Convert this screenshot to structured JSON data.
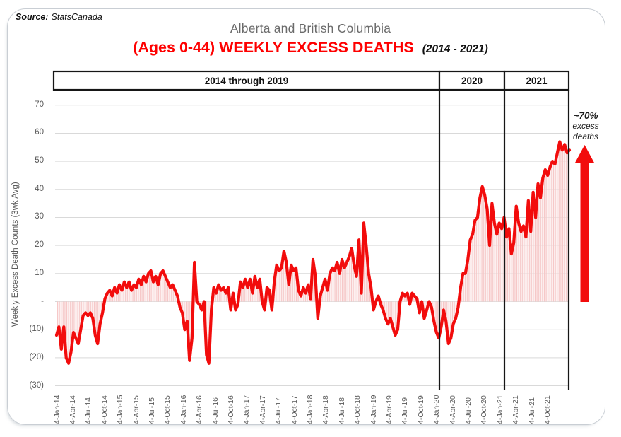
{
  "source": {
    "label": "Source:",
    "value": "StatsCanada"
  },
  "title": {
    "line1": "Alberta and British Columbia",
    "line2_red": "(Ages 0-44) WEEKLY EXCESS DEATHS",
    "line2_suffix": "(2014 - 2021)"
  },
  "period_bands": [
    {
      "label": "2014 through 2019"
    },
    {
      "label": "2020"
    },
    {
      "label": "2021"
    }
  ],
  "annotation": {
    "headline": "~70%",
    "line2": "excess",
    "line3": "deaths"
  },
  "colors": {
    "line_red": "#f20c0c",
    "title_red": "#fe0000",
    "fill_pink_stripe": "#f5c6c6",
    "fill_pink_bg": "rgba(252,233,233,0.6)",
    "gridline": "#d9d9d9",
    "axis_text": "#595959",
    "band_border": "#161616"
  },
  "chart_data": {
    "type": "line",
    "title": "Alberta and British Columbia (Ages 0-44) Weekly Excess Deaths (2014 - 2021)",
    "ylabel": "Weekly Excess Death Counts (3wk Avg)",
    "ylim": [
      -30,
      70
    ],
    "grid": true,
    "legend": "none",
    "period_dividers": [
      "start of 2020",
      "start of 2021"
    ],
    "y_ticks": [
      {
        "value": 70,
        "label": "70"
      },
      {
        "value": 60,
        "label": "60"
      },
      {
        "value": 50,
        "label": "50"
      },
      {
        "value": 40,
        "label": "40"
      },
      {
        "value": 30,
        "label": "30"
      },
      {
        "value": 20,
        "label": "20"
      },
      {
        "value": 10,
        "label": "10"
      },
      {
        "value": 0,
        "label": "-"
      },
      {
        "value": -10,
        "label": "(10)"
      },
      {
        "value": -20,
        "label": "(20)"
      },
      {
        "value": -30,
        "label": "(30)"
      }
    ],
    "x_ticks": [
      "4-Jan-14",
      "4-Apr-14",
      "4-Jul-14",
      "4-Oct-14",
      "4-Jan-15",
      "4-Apr-15",
      "4-Jul-15",
      "4-Oct-15",
      "4-Jan-16",
      "4-Apr-16",
      "4-Jul-16",
      "4-Oct-16",
      "4-Jan-17",
      "4-Apr-17",
      "4-Jul-17",
      "4-Oct-17",
      "4-Jan-18",
      "4-Apr-18",
      "4-Jul-18",
      "4-Oct-18",
      "4-Jan-19",
      "4-Apr-19",
      "4-Jul-19",
      "4-Oct-19",
      "4-Jan-20",
      "4-Apr-20",
      "4-Jul-20",
      "4-Oct-20",
      "4-Jan-21",
      "4-Apr-21",
      "4-Jul-21",
      "4-Oct-21"
    ],
    "series": [
      {
        "name": "Weekly excess death counts (3wk avg)",
        "start": "4-Jan-14",
        "end": "Dec-21",
        "interval": "~biweekly (digitized)",
        "values": [
          -12,
          -9,
          -17,
          -9,
          -20,
          -22,
          -18,
          -11,
          -13,
          -15,
          -10,
          -5,
          -4,
          -5,
          -4,
          -6,
          -12,
          -15,
          -8,
          -4,
          1,
          3,
          4,
          2,
          5,
          3,
          6,
          4,
          7,
          5,
          7,
          4,
          6,
          5,
          8,
          6,
          9,
          7,
          10,
          11,
          7,
          9,
          6,
          10,
          11,
          9,
          7,
          5,
          6,
          4,
          2,
          -2,
          -4,
          -10,
          -7,
          -21,
          -13,
          14,
          0,
          -1,
          -3,
          0,
          -19,
          -22,
          -3,
          5,
          3,
          6,
          4,
          5,
          3,
          5,
          -3,
          3,
          -3,
          -1,
          7,
          5,
          8,
          5,
          8,
          3,
          9,
          5,
          8,
          0,
          -3,
          5,
          4,
          -3,
          7,
          13,
          11,
          12,
          18,
          14,
          6,
          13,
          11,
          12,
          4,
          2,
          5,
          3,
          6,
          1,
          15,
          9,
          -6,
          2,
          5,
          8,
          4,
          10,
          12,
          11,
          14,
          10,
          15,
          12,
          14,
          16,
          19,
          13,
          9,
          22,
          3,
          28,
          20,
          10,
          5,
          -3,
          0,
          2,
          -1,
          -3,
          -6,
          -8,
          -6,
          -9,
          -12,
          -10,
          0,
          3,
          2,
          3,
          -1,
          3,
          2,
          1,
          -4,
          0,
          -6,
          -3,
          0,
          -2,
          -7,
          -11,
          -13,
          -9,
          -3,
          -7,
          -15,
          -13,
          -8,
          -6,
          -2,
          5,
          10,
          10,
          15,
          22,
          24,
          29,
          30,
          37,
          41,
          38,
          33,
          20,
          35,
          28,
          24,
          28,
          26,
          30,
          23,
          26,
          17,
          21,
          34,
          28,
          25,
          27,
          23,
          36,
          25,
          39,
          30,
          42,
          37,
          44,
          47,
          45,
          48,
          50,
          49,
          53,
          57,
          54,
          56,
          53,
          54
        ]
      }
    ]
  }
}
